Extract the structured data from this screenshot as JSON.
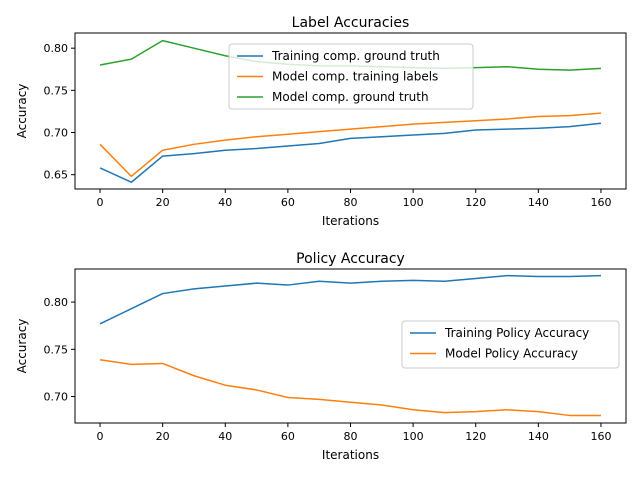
{
  "chart_data": [
    {
      "type": "line",
      "title": "Label Accuracies",
      "xlabel": "Iterations",
      "ylabel": "Accuracy",
      "xlim": [
        -8,
        168
      ],
      "ylim": [
        0.633,
        0.818
      ],
      "xticks": [
        0,
        20,
        40,
        60,
        80,
        100,
        120,
        140,
        160
      ],
      "yticks": [
        0.65,
        0.7,
        0.75,
        0.8
      ],
      "ytick_labels": [
        "0.65",
        "0.70",
        "0.75",
        "0.80"
      ],
      "grid": false,
      "legend_position": "upper-center",
      "x": [
        0,
        10,
        20,
        30,
        40,
        50,
        60,
        70,
        80,
        90,
        100,
        110,
        120,
        130,
        140,
        150,
        160
      ],
      "series": [
        {
          "name": "Training comp. ground truth",
          "color": "#1f77b4",
          "values": [
            0.658,
            0.641,
            0.672,
            0.675,
            0.679,
            0.681,
            0.684,
            0.687,
            0.693,
            0.695,
            0.697,
            0.699,
            0.703,
            0.704,
            0.705,
            0.707,
            0.711
          ]
        },
        {
          "name": "Model comp. training labels",
          "color": "#ff7f0e",
          "values": [
            0.686,
            0.648,
            0.679,
            0.686,
            0.691,
            0.695,
            0.698,
            0.701,
            0.704,
            0.707,
            0.71,
            0.712,
            0.714,
            0.716,
            0.719,
            0.72,
            0.723
          ]
        },
        {
          "name": "Model comp. ground truth",
          "color": "#2ca02c",
          "values": [
            0.78,
            0.787,
            0.809,
            0.8,
            0.791,
            0.784,
            0.781,
            0.779,
            0.779,
            0.778,
            0.777,
            0.776,
            0.777,
            0.778,
            0.775,
            0.774,
            0.776
          ]
        }
      ]
    },
    {
      "type": "line",
      "title": "Policy Accuracy",
      "xlabel": "Iterations",
      "ylabel": "Accuracy",
      "xlim": [
        -8,
        168
      ],
      "ylim": [
        0.672,
        0.835
      ],
      "xticks": [
        0,
        20,
        40,
        60,
        80,
        100,
        120,
        140,
        160
      ],
      "yticks": [
        0.7,
        0.75,
        0.8
      ],
      "ytick_labels": [
        "0.70",
        "0.75",
        "0.80"
      ],
      "grid": false,
      "legend_position": "center-right",
      "x": [
        0,
        10,
        20,
        30,
        40,
        50,
        60,
        70,
        80,
        90,
        100,
        110,
        120,
        130,
        140,
        150,
        160
      ],
      "series": [
        {
          "name": "Training Policy Accuracy",
          "color": "#1f77b4",
          "values": [
            0.777,
            0.793,
            0.809,
            0.814,
            0.817,
            0.82,
            0.818,
            0.822,
            0.82,
            0.822,
            0.823,
            0.822,
            0.825,
            0.828,
            0.827,
            0.827,
            0.828
          ]
        },
        {
          "name": "Model Policy Accuracy",
          "color": "#ff7f0e",
          "values": [
            0.739,
            0.734,
            0.735,
            0.722,
            0.712,
            0.707,
            0.699,
            0.697,
            0.694,
            0.691,
            0.686,
            0.683,
            0.684,
            0.686,
            0.684,
            0.68,
            0.68
          ]
        }
      ]
    }
  ]
}
